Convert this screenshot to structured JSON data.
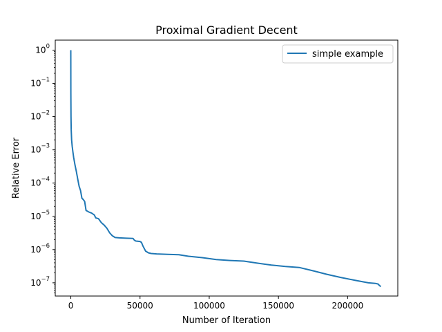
{
  "chart_data": {
    "type": "line",
    "title": "Proximal Gradient Decent",
    "xlabel": "Number of Iteration",
    "ylabel": "Relative Error",
    "xlim": [
      -11250,
      236250
    ],
    "ylim": [
      4e-08,
      2.0
    ],
    "yscale": "log",
    "grid": false,
    "legend_position": "top-right",
    "x_ticks": [
      {
        "value": 0,
        "label": "0"
      },
      {
        "value": 50000,
        "label": "50000"
      },
      {
        "value": 100000,
        "label": "100000"
      },
      {
        "value": 150000,
        "label": "150000"
      },
      {
        "value": 200000,
        "label": "200000"
      }
    ],
    "y_ticks": [
      {
        "value": 1,
        "base": "10",
        "exp": "0"
      },
      {
        "value": 0.1,
        "base": "10",
        "exp": "−1"
      },
      {
        "value": 0.01,
        "base": "10",
        "exp": "−2"
      },
      {
        "value": 0.001,
        "base": "10",
        "exp": "−3"
      },
      {
        "value": 0.0001,
        "base": "10",
        "exp": "−4"
      },
      {
        "value": 1e-05,
        "base": "10",
        "exp": "−5"
      },
      {
        "value": 1e-06,
        "base": "10",
        "exp": "−6"
      },
      {
        "value": 1e-07,
        "base": "10",
        "exp": "−7"
      }
    ],
    "series": [
      {
        "name": "simple example",
        "color": "#1f77b4",
        "x": [
          0,
          50,
          150,
          300,
          600,
          1000,
          1500,
          2000,
          3000,
          4000,
          5000,
          6000,
          7000,
          8000,
          9000,
          10000,
          11000,
          13000,
          15000,
          17000,
          18000,
          20000,
          22000,
          24000,
          26000,
          28000,
          30000,
          32000,
          35000,
          40000,
          45000,
          46000,
          47000,
          50000,
          51000,
          52000,
          54000,
          56000,
          58000,
          62000,
          70000,
          78000,
          85000,
          95000,
          105000,
          115000,
          125000,
          135000,
          145000,
          155000,
          165000,
          175000,
          185000,
          195000,
          205000,
          215000,
          220000,
          222000,
          223000,
          224000
        ],
        "y": [
          1.0,
          0.05,
          0.01,
          0.004,
          0.002,
          0.0013,
          0.00085,
          0.0006,
          0.00035,
          0.00022,
          0.00013,
          8e-05,
          6e-05,
          3.5e-05,
          3.2e-05,
          2.8e-05,
          1.5e-05,
          1.35e-05,
          1.25e-05,
          1.1e-05,
          9e-06,
          8.5e-06,
          6.5e-06,
          5.5e-06,
          4.4e-06,
          3.2e-06,
          2.6e-06,
          2.3e-06,
          2.25e-06,
          2.2e-06,
          2.15e-06,
          1.9e-06,
          1.8e-06,
          1.75e-06,
          1.65e-06,
          1.3e-06,
          9e-07,
          8e-07,
          7.6e-07,
          7.4e-07,
          7.2e-07,
          7e-07,
          6.3e-07,
          5.7e-07,
          5e-07,
          4.7e-07,
          4.5e-07,
          3.9e-07,
          3.4e-07,
          3.1e-07,
          2.9e-07,
          2.3e-07,
          1.8e-07,
          1.45e-07,
          1.2e-07,
          1e-07,
          9.6e-08,
          9.2e-08,
          8.3e-08,
          7.7e-08
        ]
      }
    ]
  }
}
